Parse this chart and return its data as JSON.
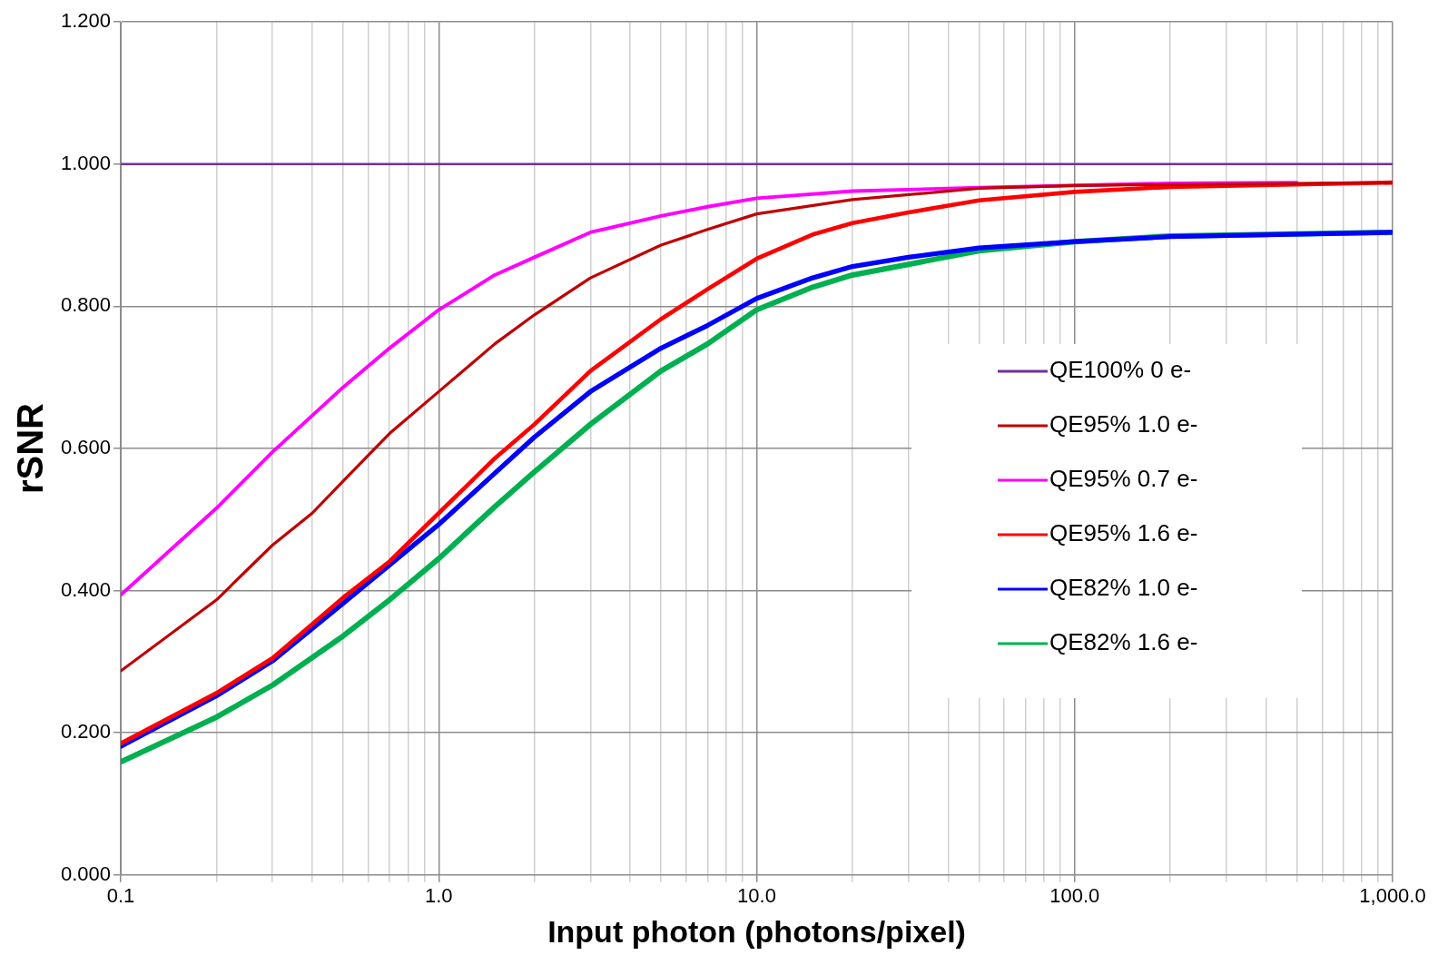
{
  "chart_data": {
    "type": "line",
    "xlabel": "Input photon (photons/pixel)",
    "ylabel": "rSNR",
    "log": "x",
    "grid": true,
    "legend": "right",
    "marker": "none",
    "line_style": "solid",
    "xlim": [
      0.1,
      1000
    ],
    "ylim": [
      0,
      1.2
    ],
    "xticks": [
      {
        "value": 0.1,
        "label": "0.1"
      },
      {
        "value": 0.2,
        "label": null
      },
      {
        "value": 0.3,
        "label": null
      },
      {
        "value": 0.4,
        "label": null
      },
      {
        "value": 0.5,
        "label": null
      },
      {
        "value": 0.6,
        "label": null
      },
      {
        "value": 0.7,
        "label": null
      },
      {
        "value": 0.8,
        "label": null
      },
      {
        "value": 0.9,
        "label": null
      },
      {
        "value": 1,
        "label": "1.0"
      },
      {
        "value": 2,
        "label": null
      },
      {
        "value": 3,
        "label": null
      },
      {
        "value": 4,
        "label": null
      },
      {
        "value": 5,
        "label": null
      },
      {
        "value": 6,
        "label": null
      },
      {
        "value": 7,
        "label": null
      },
      {
        "value": 8,
        "label": null
      },
      {
        "value": 9,
        "label": null
      },
      {
        "value": 10,
        "label": "10.0"
      },
      {
        "value": 20,
        "label": null
      },
      {
        "value": 30,
        "label": null
      },
      {
        "value": 40,
        "label": null
      },
      {
        "value": 50,
        "label": null
      },
      {
        "value": 60,
        "label": null
      },
      {
        "value": 70,
        "label": null
      },
      {
        "value": 80,
        "label": null
      },
      {
        "value": 90,
        "label": null
      },
      {
        "value": 100,
        "label": "100.0"
      },
      {
        "value": 200,
        "label": null
      },
      {
        "value": 300,
        "label": null
      },
      {
        "value": 400,
        "label": null
      },
      {
        "value": 500,
        "label": null
      },
      {
        "value": 600,
        "label": null
      },
      {
        "value": 700,
        "label": null
      },
      {
        "value": 800,
        "label": null
      },
      {
        "value": 900,
        "label": null
      },
      {
        "value": 1000,
        "label": "1,000.0"
      }
    ],
    "yticks": [
      {
        "value": 0,
        "label": "0.000"
      },
      {
        "value": 0.2,
        "label": "0.200"
      },
      {
        "value": 0.4,
        "label": "0.400"
      },
      {
        "value": 0.6,
        "label": "0.600"
      },
      {
        "value": 0.8,
        "label": "0.800"
      },
      {
        "value": 1,
        "label": "1.000"
      },
      {
        "value": 1.2,
        "label": "1.200"
      }
    ],
    "series": [
      {
        "name": "QE100% 0 e-",
        "color": "#7030a0",
        "x": [
          0.1,
          1000
        ],
        "values": [
          1.0,
          1.0
        ]
      },
      {
        "name": "QE95% 1.0 e-",
        "color": "#c00000",
        "x": [
          0.1,
          0.2,
          0.3,
          0.4,
          0.5,
          0.7,
          1,
          1.5,
          2,
          3,
          5,
          7,
          10,
          20,
          50,
          100,
          1000
        ],
        "values": [
          0.287,
          0.387,
          0.464,
          0.509,
          0.554,
          0.621,
          0.68,
          0.747,
          0.788,
          0.84,
          0.886,
          0.908,
          0.93,
          0.95,
          0.966,
          0.97,
          0.974
        ]
      },
      {
        "name": "QE95% 0.7 e-",
        "color": "#ff00ff",
        "x": [
          0.1,
          0.2,
          0.3,
          0.5,
          0.7,
          1,
          1.5,
          2,
          3,
          5,
          7,
          10,
          20,
          50,
          200,
          500
        ],
        "values": [
          0.394,
          0.516,
          0.595,
          0.686,
          0.741,
          0.795,
          0.844,
          0.869,
          0.904,
          0.927,
          0.94,
          0.952,
          0.962,
          0.967,
          0.973,
          0.974
        ]
      },
      {
        "name": "QE95% 1.6 e-",
        "color": "#ff0000",
        "x": [
          0.1,
          0.2,
          0.3,
          0.5,
          0.7,
          1,
          1.5,
          2,
          3,
          5,
          7,
          10,
          15,
          20,
          30,
          50,
          100,
          200,
          1000
        ],
        "values": [
          0.185,
          0.256,
          0.305,
          0.39,
          0.441,
          0.509,
          0.586,
          0.634,
          0.709,
          0.782,
          0.824,
          0.867,
          0.901,
          0.917,
          0.932,
          0.949,
          0.961,
          0.968,
          0.974
        ]
      },
      {
        "name": "QE82% 1.0 e-",
        "color": "#0000ff",
        "x": [
          0.1,
          0.2,
          0.3,
          0.5,
          0.7,
          1,
          1.5,
          2,
          3,
          5,
          7,
          10,
          15,
          20,
          30,
          50,
          100,
          200,
          1000
        ],
        "values": [
          0.181,
          0.252,
          0.301,
          0.382,
          0.436,
          0.493,
          0.565,
          0.616,
          0.68,
          0.741,
          0.773,
          0.811,
          0.84,
          0.856,
          0.869,
          0.882,
          0.891,
          0.898,
          0.904
        ]
      },
      {
        "name": "QE82% 1.6 e-",
        "color": "#00b050",
        "x": [
          0.1,
          0.2,
          0.3,
          0.5,
          0.7,
          1,
          1.5,
          2,
          3,
          5,
          7,
          10,
          15,
          20,
          30,
          50,
          100,
          200,
          1000
        ],
        "values": [
          0.159,
          0.222,
          0.267,
          0.336,
          0.387,
          0.445,
          0.518,
          0.567,
          0.634,
          0.709,
          0.747,
          0.795,
          0.827,
          0.844,
          0.859,
          0.878,
          0.891,
          0.899,
          0.904
        ]
      }
    ]
  }
}
